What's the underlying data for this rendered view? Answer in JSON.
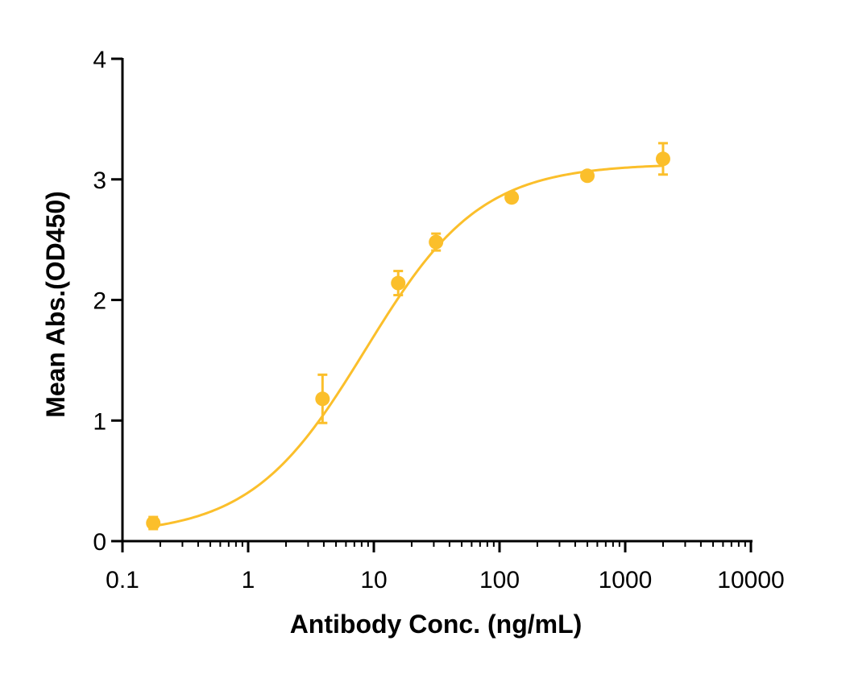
{
  "chart_data": {
    "type": "scatter",
    "title": "",
    "xlabel": "Antibody Conc. (ng/mL)",
    "ylabel": "Mean Abs.(OD450)",
    "x_scale": "log",
    "xlim": [
      0.1,
      10000
    ],
    "ylim": [
      0,
      4
    ],
    "x_ticks": [
      0.1,
      1,
      10,
      100,
      1000,
      10000
    ],
    "x_tick_labels": [
      "0.1",
      "1",
      "10",
      "100",
      "1000",
      "10000"
    ],
    "y_ticks": [
      0,
      1,
      2,
      3,
      4
    ],
    "y_tick_labels": [
      "0",
      "1",
      "2",
      "3",
      "4"
    ],
    "grid": false,
    "legend": "none",
    "color": "#FBBF2B",
    "series": [
      {
        "points": [
          {
            "x": 0.1758,
            "y": 0.15,
            "err": 0.05
          },
          {
            "x": 3.906,
            "y": 1.18,
            "err": 0.2
          },
          {
            "x": 15.625,
            "y": 2.14,
            "err": 0.1
          },
          {
            "x": 31.25,
            "y": 2.48,
            "err": 0.07
          },
          {
            "x": 125,
            "y": 2.85,
            "err": 0.0
          },
          {
            "x": 500,
            "y": 3.03,
            "err": 0.0
          },
          {
            "x": 2000,
            "y": 3.17,
            "err": 0.13
          }
        ],
        "fit": {
          "type": "4PL",
          "bottom": 0.05,
          "top": 3.13,
          "ec50": 8.6,
          "hill": 0.95
        }
      }
    ]
  }
}
